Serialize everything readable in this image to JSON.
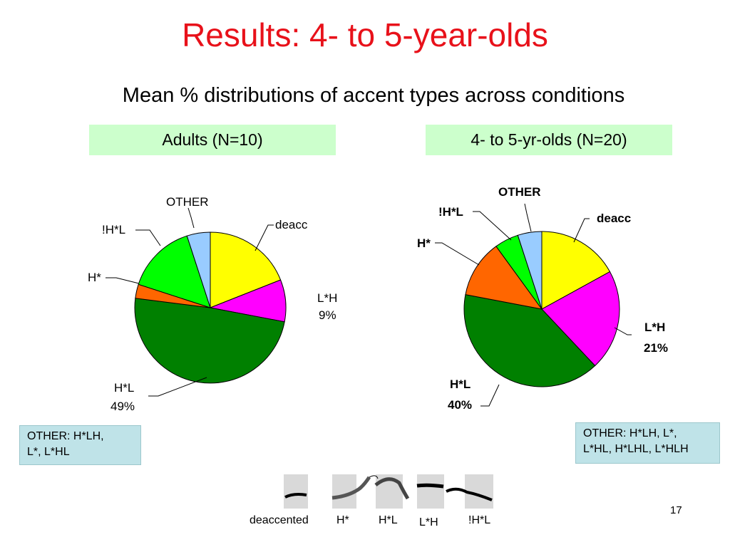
{
  "slide": {
    "title": "Results: 4- to 5-year-olds",
    "subtitle": "Mean % distributions of accent types across conditions",
    "page_number": "17"
  },
  "panels": {
    "adults": {
      "label": "Adults (N=10)",
      "note": [
        "OTHER: H*LH,",
        "L*, L*HL"
      ],
      "labels": {
        "other": "OTHER",
        "deacc": "deacc",
        "lh": "L*H",
        "lh_pct": "9%",
        "hl": "H*L",
        "hl_pct": "49%",
        "h": "H*",
        "dhl": "!H*L"
      }
    },
    "kids": {
      "label": "4- to 5-yr-olds (N=20)",
      "note": [
        "OTHER: H*LH, L*,",
        "L*HL, H*LHL, L*HLH"
      ],
      "labels": {
        "other": "OTHER",
        "deacc": "deacc",
        "lh": "L*H",
        "lh_pct": "21%",
        "hl": "H*L",
        "hl_pct": "40%",
        "h": "H*",
        "dhl": "!H*L"
      }
    }
  },
  "contours": {
    "labels": [
      "deaccented",
      "H*",
      "H*L",
      "L*H",
      "!H*L"
    ]
  },
  "chart_data": [
    {
      "type": "pie",
      "title": "Adults (N=10)",
      "categories": [
        "deacc",
        "L*H",
        "H*L",
        "H*",
        "!H*L",
        "OTHER"
      ],
      "values": [
        19,
        9,
        49,
        3,
        15,
        5
      ],
      "colors": [
        "#ffff00",
        "#ff00ff",
        "#008000",
        "#ff6600",
        "#00ff00",
        "#99ccff"
      ]
    },
    {
      "type": "pie",
      "title": "4- to 5-yr-olds (N=20)",
      "categories": [
        "deacc",
        "L*H",
        "H*L",
        "H*",
        "!H*L",
        "OTHER"
      ],
      "values": [
        17,
        21,
        40,
        12,
        5,
        5
      ],
      "colors": [
        "#ffff00",
        "#ff00ff",
        "#008000",
        "#ff6600",
        "#00ff00",
        "#99ccff"
      ]
    }
  ]
}
